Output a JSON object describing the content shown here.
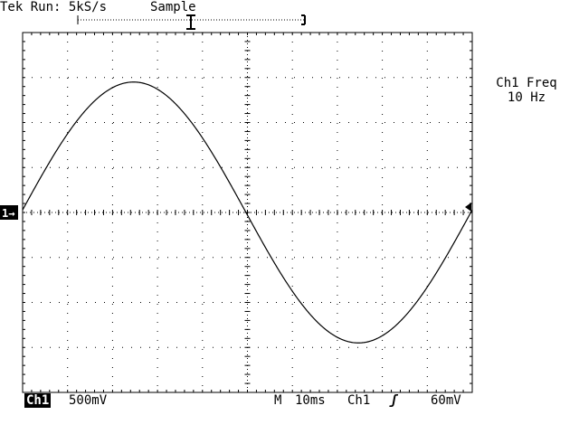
{
  "header": {
    "status": "Tek Run: 5kS/s",
    "acquisition_mode": "Sample"
  },
  "measurement": {
    "label": "Ch1 Freq",
    "value": "10 Hz"
  },
  "footer": {
    "channel_badge": "Ch1",
    "channel_scale": "500mV",
    "timebase_prefix": "M",
    "timebase": "10ms",
    "trigger_source": "Ch1",
    "trigger_slope_glyph": "ʃ",
    "trigger_level": "60mV"
  },
  "markers": {
    "channel_ground_label": "1→"
  },
  "colors": {
    "background": "#ffffff",
    "foreground": "#000000"
  },
  "waveform": {
    "channel": "Ch1",
    "frequency_hz": 10,
    "amplitude_divisions": 2.9,
    "phase": "starts at zero crossing, rising"
  }
}
